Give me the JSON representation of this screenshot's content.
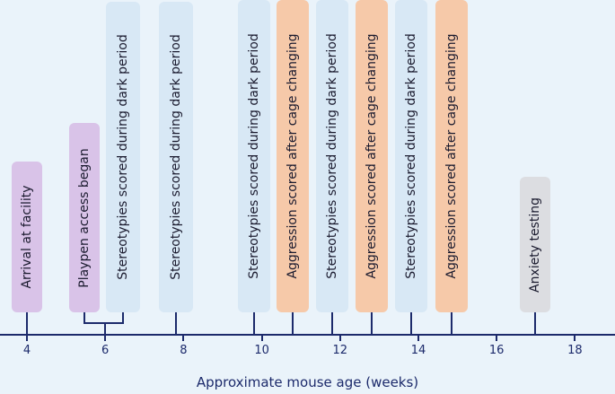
{
  "axis": {
    "title": "Approximate mouse age (weeks)",
    "ticks": [
      4,
      6,
      8,
      10,
      12,
      14,
      16,
      18
    ]
  },
  "colors": {
    "purple": "#d9c3e8",
    "blue": "#d8e8f5",
    "orange": "#f6c9a9",
    "gray": "#dcdde1",
    "axis": "#1c2a6b"
  },
  "events": [
    {
      "label": "Arrival at facility",
      "week": 4,
      "color": "purple"
    },
    {
      "label": "Playpen access began",
      "week": 5.5,
      "color": "purple"
    },
    {
      "label": "Stereotypies  scored during dark period",
      "week": 6.5,
      "color": "blue"
    },
    {
      "label": "Stereotypies  scored during dark period",
      "week": 8,
      "color": "blue"
    },
    {
      "label": "Stereotypies  scored during dark period",
      "week": 10,
      "color": "blue"
    },
    {
      "label": "Aggression scored after cage changing",
      "week": 11,
      "color": "orange"
    },
    {
      "label": "Stereotypies  scored during dark period",
      "week": 12,
      "color": "blue"
    },
    {
      "label": "Aggression scored after cage changing",
      "week": 13,
      "color": "orange"
    },
    {
      "label": "Stereotypies  scored during dark period",
      "week": 14,
      "color": "blue"
    },
    {
      "label": "Aggression scored after cage changing",
      "week": 15,
      "color": "orange"
    },
    {
      "label": "Anxiety testing",
      "week": 17,
      "color": "gray"
    }
  ]
}
